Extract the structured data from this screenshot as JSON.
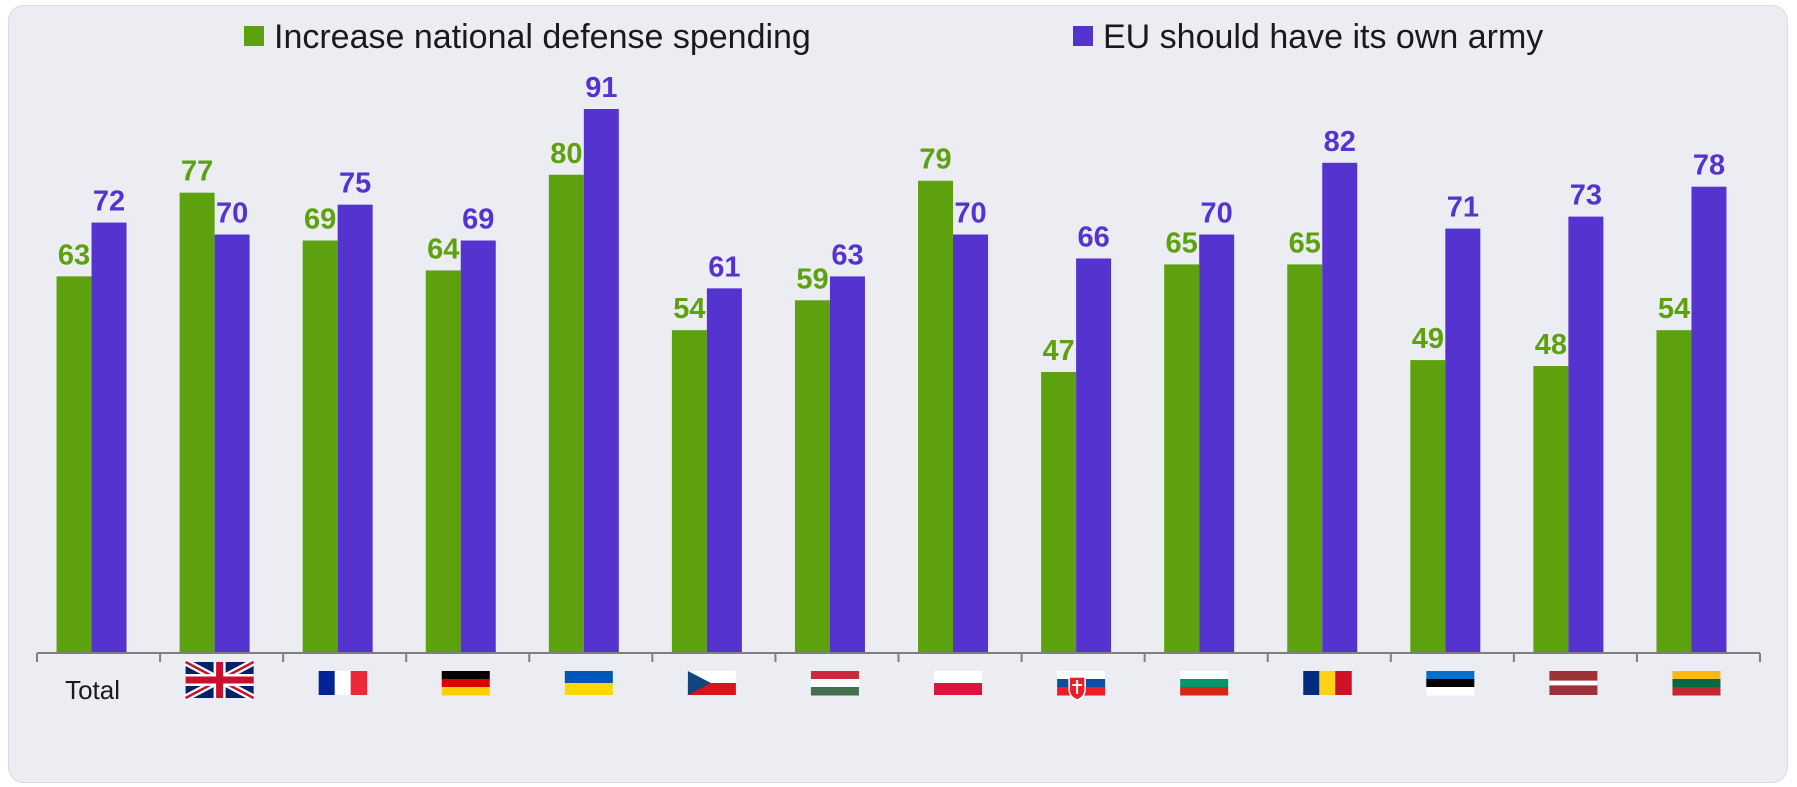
{
  "colors": {
    "series1": "#5EA10E",
    "series2": "#5533CF",
    "axis": "#7F7F7F"
  },
  "chart_data": {
    "type": "bar",
    "categories": [
      {
        "label": "Total",
        "flag": ""
      },
      {
        "label": "",
        "flag": "uk-flag"
      },
      {
        "label": "",
        "flag": "france-flag"
      },
      {
        "label": "",
        "flag": "germany-flag"
      },
      {
        "label": "",
        "flag": "ukraine-flag"
      },
      {
        "label": "",
        "flag": "czechia-flag"
      },
      {
        "label": "",
        "flag": "hungary-flag"
      },
      {
        "label": "",
        "flag": "poland-flag"
      },
      {
        "label": "",
        "flag": "slovakia-flag"
      },
      {
        "label": "",
        "flag": "bulgaria-flag"
      },
      {
        "label": "",
        "flag": "romania-flag"
      },
      {
        "label": "",
        "flag": "estonia-flag"
      },
      {
        "label": "",
        "flag": "latvia-flag"
      },
      {
        "label": "",
        "flag": "lithuania-flag"
      }
    ],
    "series": [
      {
        "name": "Increase national defense spending",
        "values": [
          63,
          77,
          69,
          64,
          80,
          54,
          59,
          79,
          47,
          65,
          65,
          49,
          48,
          54
        ]
      },
      {
        "name": "EU should have its own army",
        "values": [
          72,
          70,
          75,
          69,
          91,
          61,
          63,
          70,
          66,
          70,
          82,
          71,
          73,
          78
        ]
      }
    ],
    "ylim": [
      0,
      91
    ],
    "legend_position": "top",
    "grid": false
  }
}
